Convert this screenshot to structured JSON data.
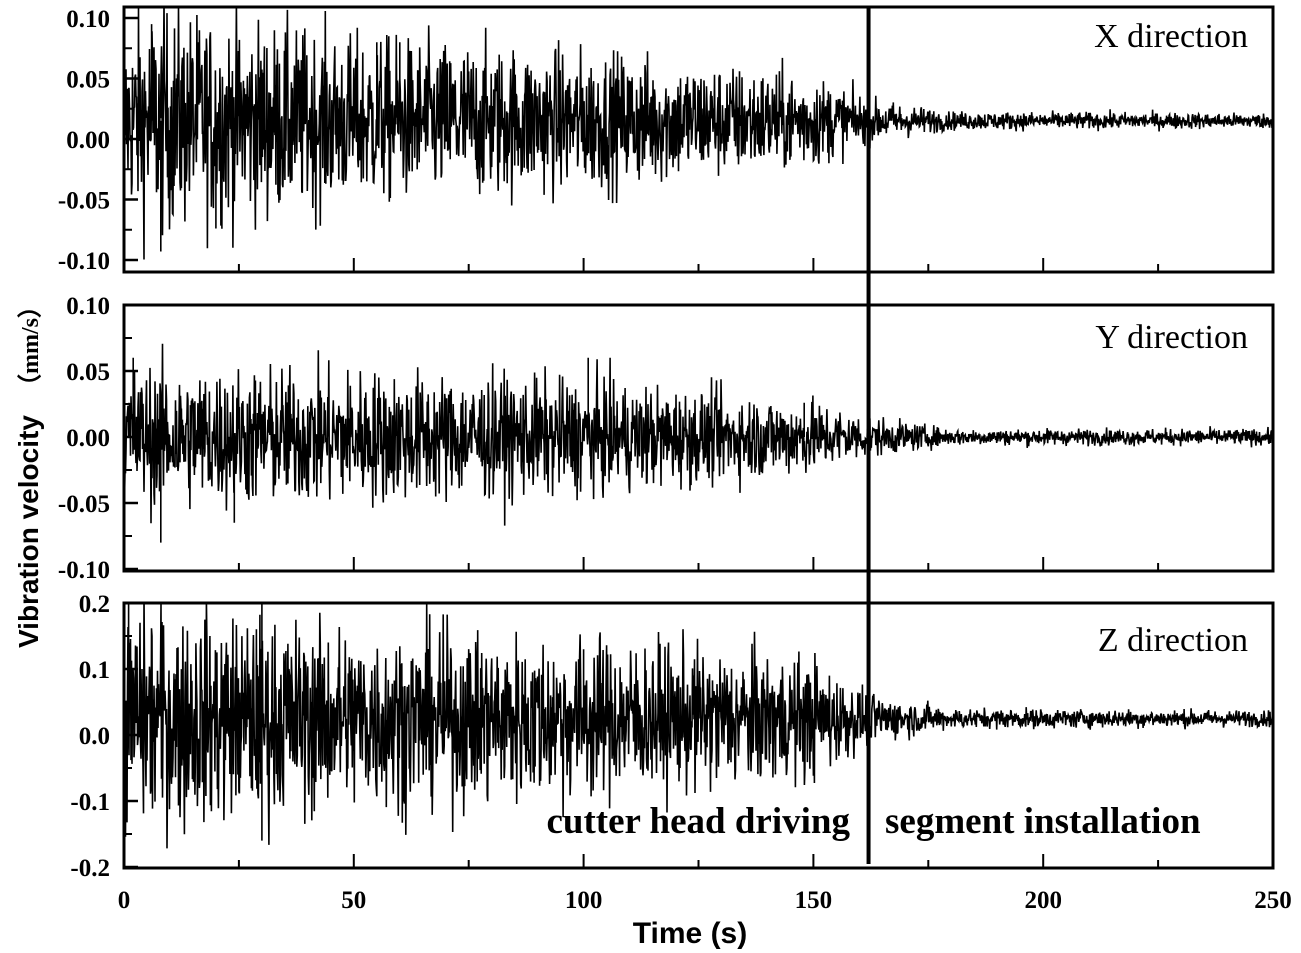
{
  "chart_data": {
    "type": "line",
    "title": "",
    "xlabel": "Time (s)",
    "ylabel": "Vibration velocity",
    "ylabel_unit": "（mm/s）",
    "xlim": [
      0,
      250
    ],
    "x_ticks": [
      0,
      50,
      100,
      150,
      200,
      250
    ],
    "x_tick_labels": [
      "0",
      "50",
      "100",
      "150",
      "200",
      "250"
    ],
    "grid": false,
    "legend": null,
    "divider": {
      "x": 162,
      "description": "vertical line separating phases"
    },
    "annotations": [
      {
        "text": "cutter head driving",
        "x_range": [
          0,
          162
        ],
        "panel": "Z direction"
      },
      {
        "text": "segment installation",
        "x_range": [
          162,
          250
        ],
        "panel": "Z direction"
      }
    ],
    "series": [
      {
        "name": "X direction",
        "ylim": [
          -0.1,
          0.1
        ],
        "y_ticks": [
          0.1,
          0.05,
          0.0,
          -0.05,
          -0.1
        ],
        "y_tick_labels": [
          "0.10",
          "0.05",
          "0.00",
          "-0.05",
          "-0.10"
        ],
        "offset": 0.015,
        "envelope": [
          {
            "t": 0,
            "amp": 0.045
          },
          {
            "t": 5,
            "amp": 0.06
          },
          {
            "t": 50,
            "amp": 0.045
          },
          {
            "t": 100,
            "amp": 0.038
          },
          {
            "t": 150,
            "amp": 0.025
          },
          {
            "t": 162,
            "amp": 0.012
          },
          {
            "t": 180,
            "amp": 0.005
          },
          {
            "t": 250,
            "amp": 0.004
          }
        ],
        "peaks": [
          {
            "t": 6,
            "value": 0.095
          },
          {
            "t": 8,
            "value": -0.093
          },
          {
            "t": 20,
            "value": -0.074
          },
          {
            "t": 55,
            "value": 0.08
          },
          {
            "t": 60,
            "value": 0.08
          }
        ]
      },
      {
        "name": "Y direction",
        "ylim": [
          -0.1,
          0.1
        ],
        "y_ticks": [
          0.1,
          0.05,
          0.0,
          -0.05,
          -0.1
        ],
        "y_tick_labels": [
          "0.10",
          "0.05",
          "0.00",
          "-0.05",
          "-0.10"
        ],
        "offset": 0.0,
        "envelope": [
          {
            "t": 0,
            "amp": 0.035
          },
          {
            "t": 50,
            "amp": 0.033
          },
          {
            "t": 100,
            "amp": 0.028
          },
          {
            "t": 150,
            "amp": 0.018
          },
          {
            "t": 162,
            "amp": 0.01
          },
          {
            "t": 180,
            "amp": 0.004
          },
          {
            "t": 250,
            "amp": 0.004
          }
        ],
        "peaks": [
          {
            "t": 2,
            "value": 0.06
          },
          {
            "t": 8,
            "value": -0.08
          },
          {
            "t": 24,
            "value": -0.065
          },
          {
            "t": 101,
            "value": 0.06
          },
          {
            "t": 148,
            "value": 0.026
          }
        ]
      },
      {
        "name": "Z direction",
        "ylim": [
          -0.2,
          0.2
        ],
        "y_ticks": [
          0.2,
          0.1,
          0.0,
          -0.1,
          -0.2
        ],
        "y_tick_labels": [
          "0.2",
          "0.1",
          "0.0",
          "-0.1",
          "-0.2"
        ],
        "offset": 0.025,
        "envelope": [
          {
            "t": 0,
            "amp": 0.11
          },
          {
            "t": 50,
            "amp": 0.09
          },
          {
            "t": 100,
            "amp": 0.08
          },
          {
            "t": 150,
            "amp": 0.06
          },
          {
            "t": 162,
            "amp": 0.025
          },
          {
            "t": 180,
            "amp": 0.01
          },
          {
            "t": 250,
            "amp": 0.008
          }
        ],
        "peaks": [
          {
            "t": 1,
            "value": 0.2
          },
          {
            "t": 30,
            "value": 0.2
          },
          {
            "t": 30,
            "value": -0.16
          },
          {
            "t": 100,
            "value": 0.13
          }
        ]
      }
    ]
  }
}
